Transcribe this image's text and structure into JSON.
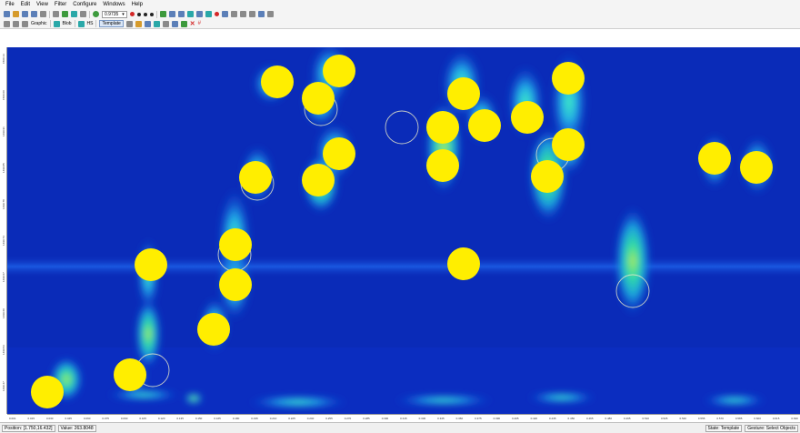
{
  "menubar": {
    "items": [
      "File",
      "Edit",
      "View",
      "Filter",
      "Configure",
      "Windows",
      "Help"
    ]
  },
  "toolbar1": {
    "view_combo_value": "0.9735"
  },
  "toolbar2": {
    "graphic_label": "Graphic",
    "blob_label": "Blob",
    "hs_label": "HS",
    "template_label": "Template"
  },
  "plot": {
    "y_ticks": [
      "1500.13",
      "1500.00",
      "1499.91",
      "1499.85",
      "1499.78",
      "1499.74",
      "1499.67",
      "1499.60",
      "1499.53",
      "1499.47"
    ],
    "x_ticks": [
      "0.001",
      "0.015",
      "0.030",
      "0.045",
      "0.060",
      "0.075",
      "0.090",
      "0.105",
      "0.120",
      "0.135",
      "0.150",
      "0.165",
      "0.180",
      "0.195",
      "0.210",
      "0.225",
      "0.240",
      "0.255",
      "0.270",
      "0.285",
      "0.300",
      "0.315",
      "0.330",
      "0.345",
      "0.360",
      "0.375",
      "0.390",
      "0.405",
      "0.420",
      "0.435",
      "0.450",
      "0.465",
      "0.480",
      "0.495",
      "0.510",
      "0.525",
      "0.540",
      "0.555",
      "0.570",
      "0.585",
      "0.600",
      "0.615",
      "0.630"
    ]
  },
  "status": {
    "position": "Position: [1.750,16.432]",
    "value": "Value: 263.8048",
    "state": "State: Template",
    "gesture": "Gesture: Select Objects"
  },
  "colors": {
    "background_blue": "#0a2bb8",
    "marker_yellow": "#ffee00",
    "hot_green": "#33ff66"
  }
}
